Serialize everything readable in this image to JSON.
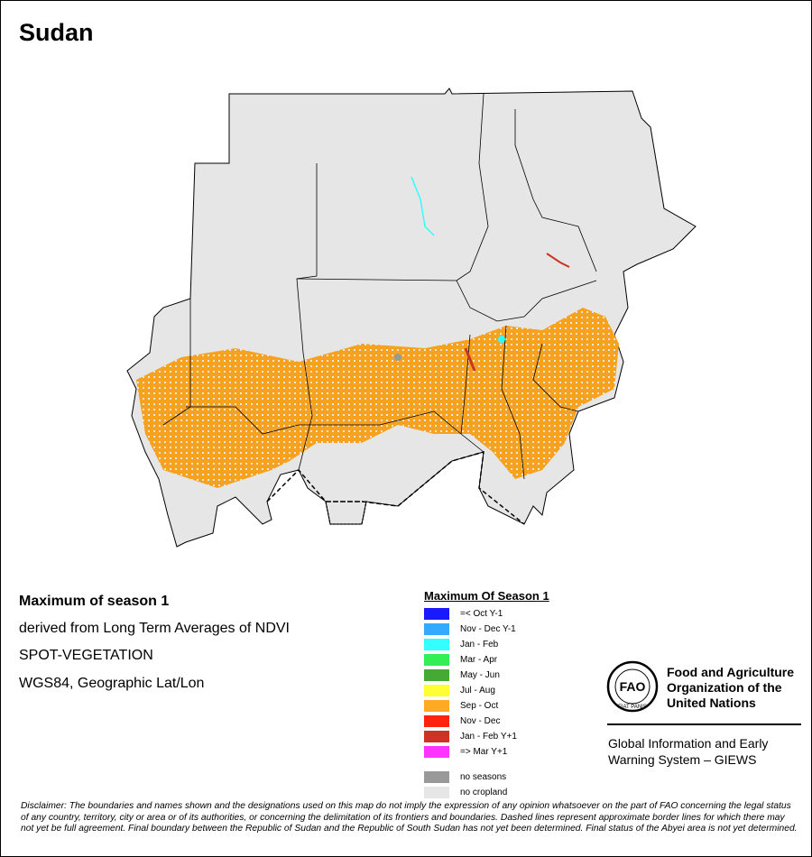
{
  "title": "Sudan",
  "info": [
    "Maximum of season 1",
    "derived from Long Term Averages of NDVI",
    "SPOT-VEGETATION",
    "WGS84, Geographic Lat/Lon"
  ],
  "legend": {
    "title": "Maximum Of Season 1",
    "items": [
      {
        "label": "=< Oct Y-1",
        "color": "#1a1aff"
      },
      {
        "label": "Nov - Dec Y-1",
        "color": "#33aaff"
      },
      {
        "label": "Jan - Feb",
        "color": "#33ffff"
      },
      {
        "label": "Mar - Apr",
        "color": "#33ee55"
      },
      {
        "label": "May - Jun",
        "color": "#44aa33"
      },
      {
        "label": "Jul - Aug",
        "color": "#ffff33"
      },
      {
        "label": "Sep - Oct",
        "color": "#ffaa22"
      },
      {
        "label": "Nov - Dec",
        "color": "#ff2211"
      },
      {
        "label": "Jan - Feb Y+1",
        "color": "#cc3322"
      },
      {
        "label": "=> Mar Y+1",
        "color": "#ff33ff"
      }
    ],
    "extra": [
      {
        "label": "no seasons",
        "color": "#999999"
      },
      {
        "label": "no cropland",
        "color": "#e6e6e6"
      }
    ]
  },
  "logo": {
    "emblem": "FAO",
    "motto": "FIAT PANIS",
    "org": [
      "Food and Agriculture",
      "Organization of the",
      "United Nations"
    ],
    "system": [
      "Global Information and Early",
      "Warning System – GIEWS"
    ]
  },
  "disclaimer": "Disclaimer: The boundaries and names shown and the designations used on this map do not imply the expression of any opinion whatsoever on the part of FAO concerning the legal status of any country, territory, city or area or of its authorities, or concerning the delimitation of its frontiers and boundaries. Dashed lines represent approximate border lines for which there may not yet be full agreement.  Final boundary between the Republic of Sudan and the Republic of South Sudan has not yet been determined. Final status of the Abyei area is not yet determined."
}
